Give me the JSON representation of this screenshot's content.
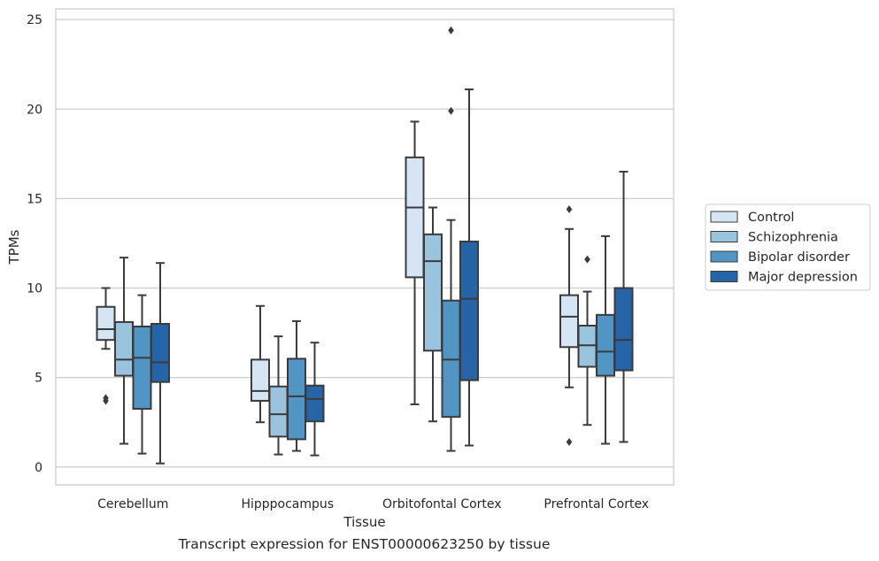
{
  "caption": "Transcript expression for ENST00000623250 by tissue",
  "chart_data": {
    "type": "box",
    "xlabel": "Tissue",
    "ylabel": "TPMs",
    "ylim": [
      -1,
      25.6
    ],
    "yticks": [
      0,
      5,
      10,
      15,
      20,
      25
    ],
    "grid": true,
    "legend_position": "right",
    "categories": [
      "Cerebellum",
      "Hipppocampus",
      "Orbitofontal Cortex",
      "Prefrontal Cortex"
    ],
    "series": [
      {
        "name": "Control",
        "color": "#d6e5f3",
        "boxes": [
          {
            "whisker_low": 6.6,
            "q1": 7.1,
            "median": 7.7,
            "q3": 8.95,
            "whisker_high": 10.0,
            "outliers": [
              3.7,
              3.85
            ]
          },
          {
            "whisker_low": 2.5,
            "q1": 3.7,
            "median": 4.25,
            "q3": 6.0,
            "whisker_high": 9.0,
            "outliers": []
          },
          {
            "whisker_low": 3.5,
            "q1": 10.6,
            "median": 14.5,
            "q3": 17.3,
            "whisker_high": 19.3,
            "outliers": []
          },
          {
            "whisker_low": 4.45,
            "q1": 6.7,
            "median": 8.4,
            "q3": 9.6,
            "whisker_high": 13.3,
            "outliers": [
              14.4,
              1.4
            ]
          }
        ]
      },
      {
        "name": "Schizophrenia",
        "color": "#9ac3dd",
        "boxes": [
          {
            "whisker_low": 1.3,
            "q1": 5.1,
            "median": 6.0,
            "q3": 8.1,
            "whisker_high": 11.7,
            "outliers": []
          },
          {
            "whisker_low": 0.7,
            "q1": 1.7,
            "median": 2.95,
            "q3": 4.5,
            "whisker_high": 7.3,
            "outliers": []
          },
          {
            "whisker_low": 2.55,
            "q1": 6.5,
            "median": 11.5,
            "q3": 13.0,
            "whisker_high": 14.5,
            "outliers": []
          },
          {
            "whisker_low": 2.35,
            "q1": 5.6,
            "median": 6.8,
            "q3": 7.9,
            "whisker_high": 9.8,
            "outliers": [
              11.6
            ]
          }
        ]
      },
      {
        "name": "Bipolar disorder",
        "color": "#5195c5",
        "boxes": [
          {
            "whisker_low": 0.75,
            "q1": 3.25,
            "median": 6.1,
            "q3": 7.85,
            "whisker_high": 9.6,
            "outliers": []
          },
          {
            "whisker_low": 0.9,
            "q1": 1.55,
            "median": 3.95,
            "q3": 6.05,
            "whisker_high": 8.15,
            "outliers": []
          },
          {
            "whisker_low": 0.9,
            "q1": 2.8,
            "median": 6.0,
            "q3": 9.3,
            "whisker_high": 13.8,
            "outliers": [
              19.9,
              24.4
            ]
          },
          {
            "whisker_low": 1.3,
            "q1": 5.1,
            "median": 6.45,
            "q3": 8.5,
            "whisker_high": 12.9,
            "outliers": []
          }
        ]
      },
      {
        "name": "Major depression",
        "color": "#2565a7",
        "boxes": [
          {
            "whisker_low": 0.2,
            "q1": 4.75,
            "median": 5.85,
            "q3": 8.0,
            "whisker_high": 11.4,
            "outliers": []
          },
          {
            "whisker_low": 0.65,
            "q1": 2.55,
            "median": 3.8,
            "q3": 4.55,
            "whisker_high": 6.95,
            "outliers": []
          },
          {
            "whisker_low": 1.2,
            "q1": 4.85,
            "median": 9.4,
            "q3": 12.6,
            "whisker_high": 21.1,
            "outliers": []
          },
          {
            "whisker_low": 1.4,
            "q1": 5.4,
            "median": 7.1,
            "q3": 10.0,
            "whisker_high": 16.5,
            "outliers": []
          }
        ]
      }
    ]
  }
}
